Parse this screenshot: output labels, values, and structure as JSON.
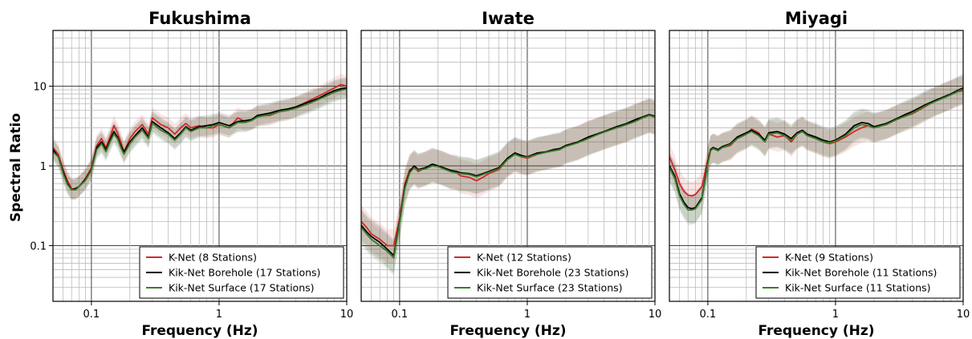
{
  "figure": {
    "ylabel": "Spectral Ratio"
  },
  "chart_data": [
    {
      "type": "line",
      "title": "Fukushima",
      "xlabel": "Frequency (Hz)",
      "ylabel": "Spectral Ratio",
      "xscale": "log",
      "yscale": "log",
      "xlim": [
        0.05,
        10
      ],
      "ylim": [
        0.02,
        50
      ],
      "xticks": [
        {
          "v": 0.1,
          "label": "0.1"
        },
        {
          "v": 1,
          "label": "1"
        },
        {
          "v": 10,
          "label": "10"
        }
      ],
      "yticks": [
        {
          "v": 0.1,
          "label": "0.1"
        },
        {
          "v": 1,
          "label": "1"
        },
        {
          "v": 10,
          "label": "10"
        }
      ],
      "grid": true,
      "legend": "lower-right",
      "series": [
        {
          "name": "K-Net (8 Stations)",
          "color": "#d62728",
          "band": [
            0.75,
            1.35
          ],
          "x": [
            0.05,
            0.055,
            0.06,
            0.065,
            0.07,
            0.075,
            0.08,
            0.09,
            0.1,
            0.11,
            0.12,
            0.13,
            0.14,
            0.15,
            0.16,
            0.17,
            0.18,
            0.2,
            0.22,
            0.25,
            0.28,
            0.3,
            0.35,
            0.4,
            0.45,
            0.5,
            0.55,
            0.6,
            0.7,
            0.8,
            0.9,
            1.0,
            1.2,
            1.4,
            1.6,
            1.8,
            2.0,
            2.5,
            3.0,
            3.5,
            4,
            5,
            6,
            7,
            8,
            9,
            10
          ],
          "y": [
            1.7,
            1.4,
            0.9,
            0.65,
            0.52,
            0.5,
            0.55,
            0.7,
            0.95,
            1.8,
            2.2,
            1.7,
            2.3,
            3.2,
            2.6,
            2.0,
            1.5,
            2.2,
            2.7,
            3.3,
            2.5,
            4.0,
            3.3,
            3.0,
            2.5,
            3.0,
            3.4,
            3.0,
            3.2,
            3.0,
            3.0,
            3.3,
            3.0,
            4.0,
            3.6,
            3.8,
            4.2,
            4.3,
            4.8,
            5.0,
            5.5,
            6.5,
            7.5,
            8.5,
            9.5,
            10.5,
            10
          ]
        },
        {
          "name": "Kik-Net Borehole (17 Stations)",
          "color": "#000000",
          "band": [
            0.75,
            1.35
          ],
          "x": [
            0.05,
            0.055,
            0.06,
            0.065,
            0.07,
            0.075,
            0.08,
            0.09,
            0.1,
            0.11,
            0.12,
            0.13,
            0.14,
            0.15,
            0.16,
            0.17,
            0.18,
            0.2,
            0.22,
            0.25,
            0.28,
            0.3,
            0.35,
            0.4,
            0.45,
            0.5,
            0.55,
            0.6,
            0.7,
            0.8,
            0.9,
            1.0,
            1.2,
            1.4,
            1.6,
            1.8,
            2.0,
            2.5,
            3.0,
            3.5,
            4,
            5,
            6,
            7,
            8,
            9,
            10
          ],
          "y": [
            1.6,
            1.3,
            0.85,
            0.6,
            0.5,
            0.52,
            0.55,
            0.68,
            0.9,
            1.7,
            2.0,
            1.6,
            2.1,
            2.7,
            2.3,
            1.8,
            1.5,
            2.0,
            2.4,
            3.0,
            2.3,
            3.6,
            3.0,
            2.6,
            2.2,
            2.6,
            3.1,
            2.8,
            3.1,
            3.2,
            3.3,
            3.5,
            3.2,
            3.6,
            3.7,
            3.8,
            4.3,
            4.6,
            5.0,
            5.2,
            5.5,
            6.3,
            7.0,
            8.0,
            8.8,
            9.3,
            9.5
          ]
        },
        {
          "name": "Kik-Net Surface (17 Stations)",
          "color": "#3a7d2c",
          "band": [
            0.75,
            1.35
          ],
          "x": [
            0.05,
            0.055,
            0.06,
            0.065,
            0.07,
            0.075,
            0.08,
            0.09,
            0.1,
            0.11,
            0.12,
            0.13,
            0.14,
            0.15,
            0.16,
            0.17,
            0.18,
            0.2,
            0.22,
            0.25,
            0.28,
            0.3,
            0.35,
            0.4,
            0.45,
            0.5,
            0.55,
            0.6,
            0.7,
            0.8,
            0.9,
            1.0,
            1.2,
            1.4,
            1.6,
            1.8,
            2.0,
            2.5,
            3.0,
            3.5,
            4,
            5,
            6,
            7,
            8,
            9,
            10
          ],
          "y": [
            1.5,
            1.3,
            0.8,
            0.58,
            0.5,
            0.5,
            0.55,
            0.66,
            0.88,
            1.6,
            1.9,
            1.5,
            2.0,
            2.5,
            2.2,
            1.7,
            1.4,
            1.9,
            2.3,
            2.8,
            2.2,
            3.4,
            2.8,
            2.5,
            2.1,
            2.5,
            3.0,
            2.7,
            3.0,
            3.0,
            3.2,
            3.3,
            3.0,
            3.5,
            3.5,
            3.7,
            4.1,
            4.4,
            4.8,
            5.0,
            5.3,
            6.0,
            6.8,
            7.6,
            8.4,
            8.9,
            9.2
          ]
        }
      ]
    },
    {
      "type": "line",
      "title": "Iwate",
      "xlabel": "Frequency (Hz)",
      "ylabel": "",
      "xscale": "log",
      "yscale": "log",
      "xlim": [
        0.05,
        10
      ],
      "ylim": [
        0.02,
        50
      ],
      "xticks": [
        {
          "v": 0.1,
          "label": "0.1"
        },
        {
          "v": 1,
          "label": "1"
        },
        {
          "v": 10,
          "label": "10"
        }
      ],
      "yticks": [],
      "grid": true,
      "legend": "lower-right",
      "series": [
        {
          "name": "K-Net (12 Stations)",
          "color": "#d62728",
          "band": [
            0.6,
            1.6
          ],
          "x": [
            0.05,
            0.055,
            0.06,
            0.07,
            0.08,
            0.09,
            0.1,
            0.11,
            0.12,
            0.13,
            0.14,
            0.16,
            0.18,
            0.2,
            0.22,
            0.25,
            0.28,
            0.3,
            0.35,
            0.4,
            0.45,
            0.5,
            0.6,
            0.7,
            0.8,
            0.9,
            1.0,
            1.2,
            1.4,
            1.6,
            1.8,
            2.0,
            2.5,
            3,
            3.5,
            4,
            5,
            6,
            7,
            8,
            9,
            10
          ],
          "y": [
            0.2,
            0.17,
            0.14,
            0.12,
            0.1,
            0.1,
            0.22,
            0.6,
            0.9,
            0.95,
            0.85,
            0.95,
            1.05,
            1.0,
            0.95,
            0.85,
            0.82,
            0.75,
            0.72,
            0.65,
            0.72,
            0.8,
            0.9,
            1.2,
            1.4,
            1.3,
            1.25,
            1.4,
            1.5,
            1.55,
            1.6,
            1.8,
            2.0,
            2.3,
            2.5,
            2.7,
            3.0,
            3.3,
            3.7,
            4.0,
            4.3,
            4.1
          ]
        },
        {
          "name": "Kik-Net Borehole (23 Stations)",
          "color": "#000000",
          "band": [
            0.6,
            1.6
          ],
          "x": [
            0.05,
            0.055,
            0.06,
            0.07,
            0.08,
            0.09,
            0.1,
            0.11,
            0.12,
            0.13,
            0.14,
            0.16,
            0.18,
            0.2,
            0.22,
            0.25,
            0.28,
            0.3,
            0.35,
            0.4,
            0.45,
            0.5,
            0.6,
            0.7,
            0.8,
            0.9,
            1.0,
            1.2,
            1.4,
            1.6,
            1.8,
            2.0,
            2.5,
            3,
            3.5,
            4,
            5,
            6,
            7,
            8,
            9,
            10
          ],
          "y": [
            0.18,
            0.15,
            0.13,
            0.11,
            0.09,
            0.075,
            0.2,
            0.55,
            0.85,
            1.0,
            0.9,
            0.95,
            1.05,
            1.0,
            0.95,
            0.88,
            0.85,
            0.82,
            0.8,
            0.75,
            0.8,
            0.85,
            0.95,
            1.25,
            1.45,
            1.35,
            1.3,
            1.45,
            1.5,
            1.6,
            1.65,
            1.8,
            2.0,
            2.3,
            2.5,
            2.7,
            3.1,
            3.4,
            3.8,
            4.1,
            4.4,
            4.2
          ]
        },
        {
          "name": "Kik-Net Surface (23 Stations)",
          "color": "#3a7d2c",
          "band": [
            0.6,
            1.6
          ],
          "x": [
            0.05,
            0.055,
            0.06,
            0.07,
            0.08,
            0.09,
            0.1,
            0.11,
            0.12,
            0.13,
            0.14,
            0.16,
            0.18,
            0.2,
            0.22,
            0.25,
            0.28,
            0.3,
            0.35,
            0.4,
            0.45,
            0.5,
            0.6,
            0.7,
            0.8,
            0.9,
            1.0,
            1.2,
            1.4,
            1.6,
            1.8,
            2.0,
            2.5,
            3,
            3.5,
            4,
            5,
            6,
            7,
            8,
            9,
            10
          ],
          "y": [
            0.17,
            0.14,
            0.12,
            0.1,
            0.085,
            0.07,
            0.19,
            0.52,
            0.82,
            0.95,
            0.88,
            0.92,
            1.0,
            0.98,
            0.92,
            0.85,
            0.82,
            0.8,
            0.78,
            0.73,
            0.78,
            0.83,
            0.92,
            1.2,
            1.4,
            1.3,
            1.28,
            1.4,
            1.48,
            1.55,
            1.6,
            1.75,
            1.95,
            2.2,
            2.45,
            2.65,
            3.0,
            3.3,
            3.6,
            4.0,
            4.3,
            4.1
          ]
        }
      ]
    },
    {
      "type": "line",
      "title": "Miyagi",
      "xlabel": "Frequency (Hz)",
      "ylabel": "",
      "xscale": "log",
      "yscale": "log",
      "xlim": [
        0.05,
        10
      ],
      "ylim": [
        0.02,
        50
      ],
      "xticks": [
        {
          "v": 0.1,
          "label": "0.1"
        },
        {
          "v": 1,
          "label": "1"
        },
        {
          "v": 10,
          "label": "10"
        }
      ],
      "yticks": [],
      "grid": true,
      "legend": "lower-right",
      "series": [
        {
          "name": "K-Net (9 Stations)",
          "color": "#d62728",
          "band": [
            0.65,
            1.5
          ],
          "x": [
            0.05,
            0.055,
            0.06,
            0.065,
            0.07,
            0.075,
            0.08,
            0.09,
            0.1,
            0.105,
            0.11,
            0.12,
            0.13,
            0.15,
            0.17,
            0.2,
            0.22,
            0.25,
            0.28,
            0.3,
            0.35,
            0.4,
            0.45,
            0.5,
            0.55,
            0.6,
            0.7,
            0.8,
            0.9,
            1.0,
            1.2,
            1.4,
            1.6,
            1.8,
            2.0,
            2.5,
            3,
            3.5,
            4,
            5,
            6,
            7,
            8,
            9,
            10
          ],
          "y": [
            1.3,
            0.9,
            0.6,
            0.48,
            0.43,
            0.42,
            0.44,
            0.55,
            1.2,
            1.6,
            1.7,
            1.6,
            1.7,
            1.8,
            2.2,
            2.5,
            2.9,
            2.6,
            2.0,
            2.5,
            2.3,
            2.4,
            2.0,
            2.5,
            2.7,
            2.4,
            2.2,
            2.0,
            1.9,
            2.0,
            2.3,
            2.7,
            3.0,
            3.2,
            3.0,
            3.3,
            3.8,
            4.2,
            4.5,
            5.5,
            6.5,
            7.2,
            7.8,
            8.5,
            8.8
          ]
        },
        {
          "name": "Kik-Net Borehole (11 Stations)",
          "color": "#000000",
          "band": [
            0.65,
            1.5
          ],
          "x": [
            0.05,
            0.055,
            0.06,
            0.065,
            0.07,
            0.075,
            0.08,
            0.09,
            0.1,
            0.105,
            0.11,
            0.12,
            0.13,
            0.15,
            0.17,
            0.2,
            0.22,
            0.25,
            0.28,
            0.3,
            0.35,
            0.4,
            0.45,
            0.5,
            0.55,
            0.6,
            0.7,
            0.8,
            0.9,
            1.0,
            1.2,
            1.4,
            1.6,
            1.8,
            2.0,
            2.5,
            3,
            3.5,
            4,
            5,
            6,
            7,
            8,
            9,
            10
          ],
          "y": [
            1.0,
            0.75,
            0.45,
            0.35,
            0.3,
            0.29,
            0.3,
            0.4,
            1.1,
            1.6,
            1.7,
            1.6,
            1.75,
            1.9,
            2.3,
            2.6,
            2.8,
            2.5,
            2.1,
            2.6,
            2.7,
            2.5,
            2.2,
            2.6,
            2.8,
            2.5,
            2.3,
            2.1,
            2.0,
            2.1,
            2.5,
            3.2,
            3.5,
            3.4,
            3.1,
            3.4,
            3.9,
            4.4,
            4.8,
            5.8,
            6.6,
            7.3,
            8.0,
            8.8,
            9.5
          ]
        },
        {
          "name": "Kik-Net Surface (11 Stations)",
          "color": "#3a7d2c",
          "band": [
            0.65,
            1.5
          ],
          "x": [
            0.05,
            0.055,
            0.06,
            0.065,
            0.07,
            0.075,
            0.08,
            0.09,
            0.1,
            0.105,
            0.11,
            0.12,
            0.13,
            0.15,
            0.17,
            0.2,
            0.22,
            0.25,
            0.28,
            0.3,
            0.35,
            0.4,
            0.45,
            0.5,
            0.55,
            0.6,
            0.7,
            0.8,
            0.9,
            1.0,
            1.2,
            1.4,
            1.6,
            1.8,
            2.0,
            2.5,
            3,
            3.5,
            4,
            5,
            6,
            7,
            8,
            9,
            10
          ],
          "y": [
            0.95,
            0.7,
            0.42,
            0.33,
            0.28,
            0.28,
            0.29,
            0.38,
            1.05,
            1.55,
            1.65,
            1.55,
            1.7,
            1.85,
            2.2,
            2.5,
            2.7,
            2.4,
            2.0,
            2.5,
            2.6,
            2.4,
            2.1,
            2.5,
            2.7,
            2.4,
            2.2,
            2.0,
            1.95,
            2.05,
            2.4,
            3.0,
            3.3,
            3.2,
            3.0,
            3.3,
            3.8,
            4.2,
            4.6,
            5.6,
            6.4,
            7.1,
            7.8,
            8.5,
            9.2
          ]
        }
      ]
    }
  ]
}
